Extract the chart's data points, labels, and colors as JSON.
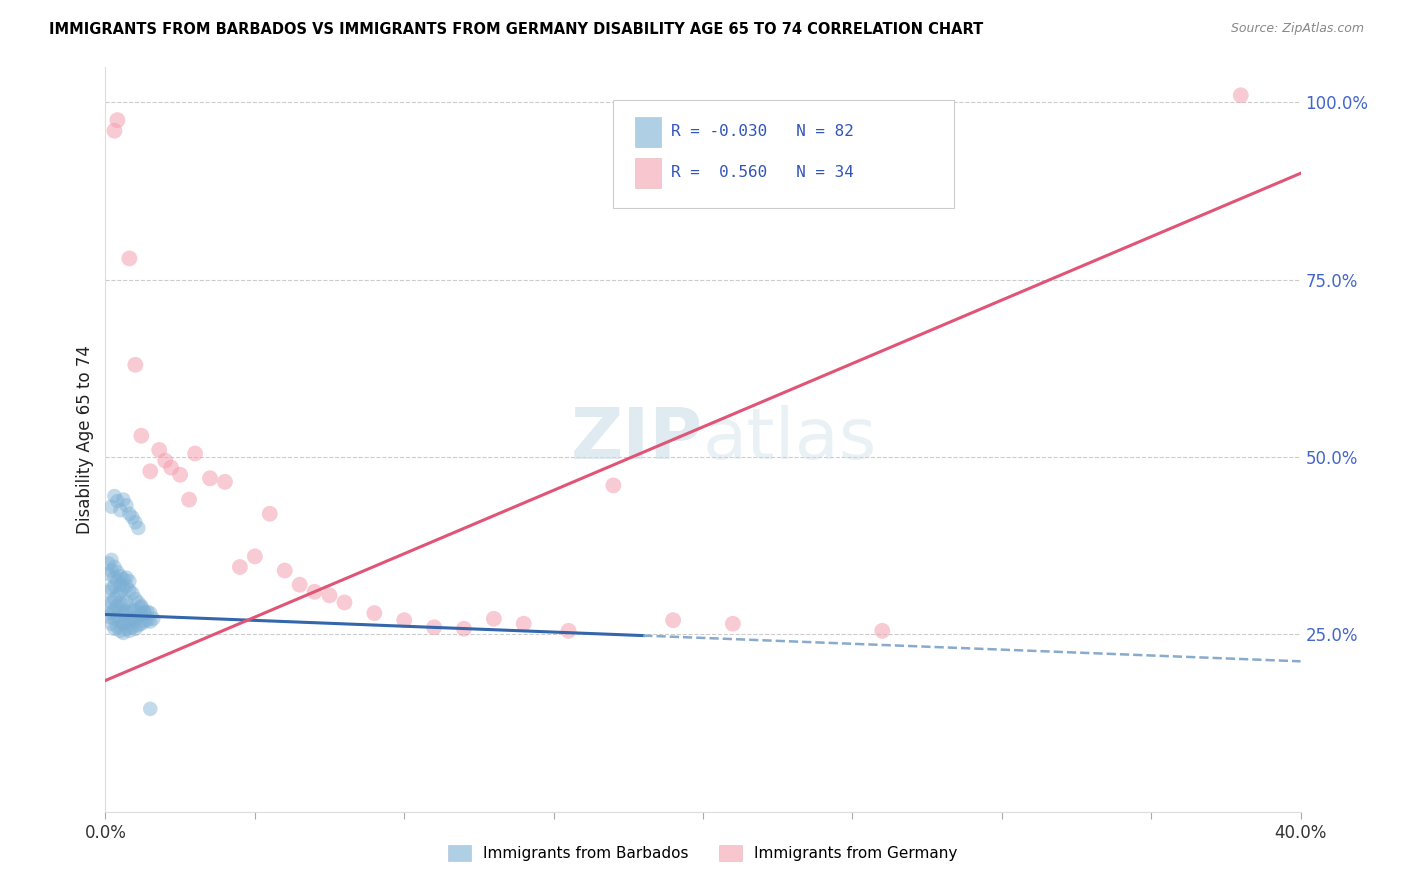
{
  "title": "IMMIGRANTS FROM BARBADOS VS IMMIGRANTS FROM GERMANY DISABILITY AGE 65 TO 74 CORRELATION CHART",
  "source": "Source: ZipAtlas.com",
  "ylabel": "Disability Age 65 to 74",
  "x_min": 0.0,
  "x_max": 0.4,
  "y_min": 0.0,
  "y_max": 1.05,
  "x_ticks": [
    0.0,
    0.05,
    0.1,
    0.15,
    0.2,
    0.25,
    0.3,
    0.35,
    0.4
  ],
  "y_ticks_right": [
    0.0,
    0.25,
    0.5,
    0.75,
    1.0
  ],
  "y_tick_labels_right": [
    "",
    "25.0%",
    "50.0%",
    "75.0%",
    "100.0%"
  ],
  "legend_r_barbados": "-0.030",
  "legend_n_barbados": "82",
  "legend_r_germany": "0.560",
  "legend_n_germany": "34",
  "barbados_color": "#7bafd4",
  "germany_color": "#f4a0b0",
  "trend_barbados_solid_color": "#3366aa",
  "trend_barbados_dash_color": "#88aacc",
  "trend_germany_color": "#e05575",
  "watermark_color": "#ccdde8",
  "barbados_points_x": [
    0.001,
    0.001,
    0.001,
    0.002,
    0.002,
    0.002,
    0.002,
    0.003,
    0.003,
    0.003,
    0.003,
    0.003,
    0.004,
    0.004,
    0.004,
    0.004,
    0.005,
    0.005,
    0.005,
    0.005,
    0.005,
    0.006,
    0.006,
    0.006,
    0.006,
    0.007,
    0.007,
    0.007,
    0.007,
    0.008,
    0.008,
    0.008,
    0.009,
    0.009,
    0.009,
    0.01,
    0.01,
    0.01,
    0.011,
    0.011,
    0.012,
    0.012,
    0.012,
    0.013,
    0.013,
    0.014,
    0.014,
    0.015,
    0.015,
    0.016,
    0.001,
    0.001,
    0.002,
    0.002,
    0.003,
    0.003,
    0.004,
    0.004,
    0.005,
    0.005,
    0.006,
    0.006,
    0.007,
    0.007,
    0.008,
    0.008,
    0.009,
    0.01,
    0.011,
    0.012,
    0.013,
    0.002,
    0.003,
    0.004,
    0.005,
    0.006,
    0.007,
    0.008,
    0.009,
    0.01,
    0.011,
    0.015
  ],
  "barbados_points_y": [
    0.275,
    0.29,
    0.31,
    0.265,
    0.28,
    0.295,
    0.315,
    0.258,
    0.272,
    0.285,
    0.3,
    0.318,
    0.26,
    0.275,
    0.29,
    0.305,
    0.255,
    0.268,
    0.282,
    0.295,
    0.31,
    0.252,
    0.265,
    0.278,
    0.292,
    0.258,
    0.27,
    0.283,
    0.296,
    0.255,
    0.268,
    0.28,
    0.26,
    0.272,
    0.284,
    0.258,
    0.27,
    0.283,
    0.263,
    0.276,
    0.265,
    0.278,
    0.29,
    0.268,
    0.28,
    0.27,
    0.282,
    0.268,
    0.28,
    0.272,
    0.335,
    0.35,
    0.34,
    0.355,
    0.33,
    0.345,
    0.325,
    0.338,
    0.32,
    0.332,
    0.315,
    0.328,
    0.318,
    0.33,
    0.312,
    0.325,
    0.308,
    0.3,
    0.295,
    0.288,
    0.282,
    0.43,
    0.445,
    0.438,
    0.425,
    0.44,
    0.432,
    0.42,
    0.415,
    0.408,
    0.4,
    0.145
  ],
  "germany_points_x": [
    0.003,
    0.004,
    0.008,
    0.01,
    0.012,
    0.015,
    0.018,
    0.02,
    0.022,
    0.025,
    0.028,
    0.03,
    0.035,
    0.04,
    0.045,
    0.05,
    0.055,
    0.06,
    0.065,
    0.07,
    0.075,
    0.08,
    0.09,
    0.1,
    0.11,
    0.12,
    0.13,
    0.14,
    0.155,
    0.17,
    0.19,
    0.21,
    0.26,
    0.38
  ],
  "germany_points_y": [
    0.96,
    0.975,
    0.78,
    0.63,
    0.53,
    0.48,
    0.51,
    0.495,
    0.485,
    0.475,
    0.44,
    0.505,
    0.47,
    0.465,
    0.345,
    0.36,
    0.42,
    0.34,
    0.32,
    0.31,
    0.305,
    0.295,
    0.28,
    0.27,
    0.26,
    0.258,
    0.272,
    0.265,
    0.255,
    0.46,
    0.27,
    0.265,
    0.255,
    1.01
  ],
  "trend_barbados_x0": 0.0,
  "trend_barbados_x_solid_end": 0.18,
  "trend_barbados_x1": 0.4,
  "trend_barbados_y0": 0.278,
  "trend_barbados_y1": 0.212,
  "trend_germany_x0": 0.0,
  "trend_germany_x1": 0.4,
  "trend_germany_y0": 0.185,
  "trend_germany_y1": 0.9
}
